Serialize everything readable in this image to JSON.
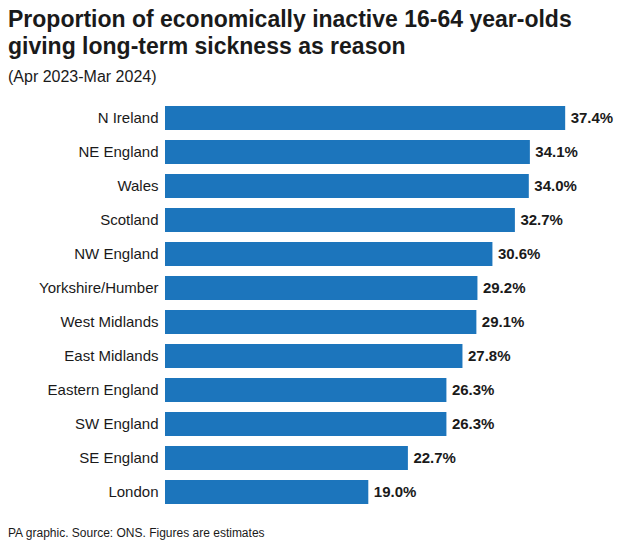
{
  "chart_data": {
    "type": "bar",
    "title": "Proportion of economically inactive 16-64 year-olds giving long-term sickness as reason",
    "subtitle": "(Apr 2023-Mar 2024)",
    "caption": "PA graphic. Source: ONS. Figures are estimates",
    "orientation": "horizontal",
    "categories": [
      "N Ireland",
      "NE England",
      "Wales",
      "Scotland",
      "NW England",
      "Yorkshire/Humber",
      "West Midlands",
      "East Midlands",
      "Eastern England",
      "SW England",
      "SE England",
      "London"
    ],
    "values": [
      37.4,
      34.1,
      34.0,
      32.7,
      30.6,
      29.2,
      29.1,
      27.8,
      26.3,
      26.3,
      22.7,
      19.0
    ],
    "value_labels": [
      "37.4%",
      "34.1%",
      "34.0%",
      "32.7%",
      "30.6%",
      "29.2%",
      "29.1%",
      "27.8%",
      "26.3%",
      "26.3%",
      "22.7%",
      "19.0%"
    ],
    "color": "#1c75bc",
    "xlim": [
      0,
      40
    ],
    "data_labels": true,
    "tick_labels": "y"
  }
}
